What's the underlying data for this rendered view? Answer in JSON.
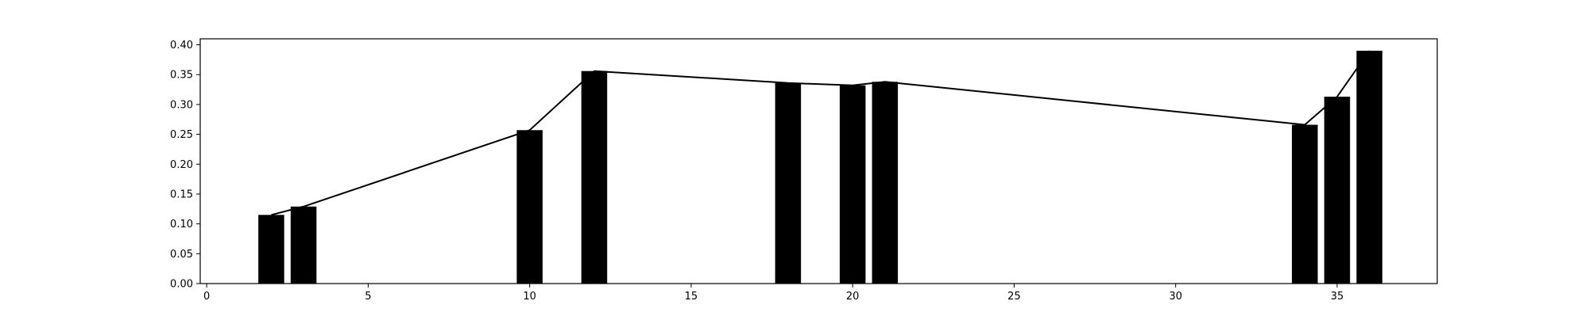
{
  "chart_data": {
    "type": "bar",
    "title": "",
    "xlabel": "",
    "ylabel": "",
    "x": [
      2,
      3,
      10,
      12,
      18,
      20,
      21,
      34,
      35,
      36
    ],
    "values": [
      0.115,
      0.129,
      0.257,
      0.356,
      0.336,
      0.332,
      0.338,
      0.266,
      0.313,
      0.39
    ],
    "bar_width": 0.8,
    "line_overlay": true,
    "xlim": [
      -0.2,
      38.1
    ],
    "ylim": [
      0,
      0.41
    ],
    "xticks": [
      0,
      5,
      10,
      15,
      20,
      25,
      30,
      35
    ],
    "yticks": [
      0.0,
      0.05,
      0.1,
      0.15,
      0.2,
      0.25,
      0.3,
      0.35,
      0.4
    ],
    "xtick_labels": [
      "0",
      "5",
      "10",
      "15",
      "20",
      "25",
      "30",
      "35"
    ],
    "ytick_labels": [
      "0.00",
      "0.05",
      "0.10",
      "0.15",
      "0.20",
      "0.25",
      "0.30",
      "0.35",
      "0.40"
    ],
    "grid": false,
    "bar_color": "#000000",
    "line_color": "#000000"
  }
}
